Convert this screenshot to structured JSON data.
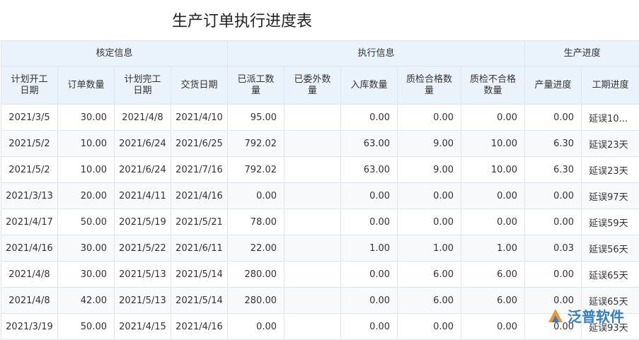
{
  "title": "生产订单执行进度表",
  "table": {
    "groups": [
      "核定信息",
      "执行信息",
      "生产进度"
    ],
    "columns": [
      "计划开工日期",
      "订单数量",
      "计划完工日期",
      "交货日期",
      "已派工数量",
      "已委外数量",
      "入库数量",
      "质检合格数量",
      "质检不合格数量",
      "产量进度",
      "工期进度"
    ],
    "rows": [
      [
        "2021/3/5",
        "30.00",
        "2021/4/8",
        "2021/4/10",
        "95.00",
        null,
        "0.00",
        "0.00",
        "0.00",
        "0.00",
        "延误10..."
      ],
      [
        "2021/5/2",
        "10.00",
        "2021/6/24",
        "2021/6/25",
        "792.02",
        null,
        "63.00",
        "9.00",
        "10.00",
        "6.30",
        "延误23天"
      ],
      [
        "2021/5/2",
        "10.00",
        "2021/6/24",
        "2021/7/16",
        "792.02",
        null,
        "63.00",
        "9.00",
        "10.00",
        "6.30",
        "延误23天"
      ],
      [
        "2021/3/13",
        "20.00",
        "2021/4/11",
        "2021/4/16",
        "0.00",
        null,
        "0.00",
        "0.00",
        "0.00",
        "0.00",
        "延误97天"
      ],
      [
        "2021/4/17",
        "50.00",
        "2021/5/19",
        "2021/5/21",
        "78.00",
        null,
        "0.00",
        "0.00",
        "0.00",
        "0.00",
        "延误59天"
      ],
      [
        "2021/4/16",
        "30.00",
        "2021/5/22",
        "2021/6/11",
        "22.00",
        null,
        "1.00",
        "1.00",
        "1.00",
        "0.03",
        "延误56天"
      ],
      [
        "2021/4/8",
        "30.00",
        "2021/5/13",
        "2021/5/14",
        "280.00",
        null,
        "0.00",
        "6.00",
        "6.00",
        "0.00",
        "延误65天"
      ],
      [
        "2021/4/8",
        "42.00",
        "2021/5/13",
        "2021/5/14",
        "280.00",
        null,
        "0.00",
        "6.00",
        "6.00",
        "0.00",
        "延误65天"
      ],
      [
        "2021/3/19",
        "50.00",
        "2021/4/15",
        "2021/4/16",
        "0.00",
        null,
        "0.00",
        "0.00",
        "0.00",
        "0.00",
        "延误93天"
      ]
    ]
  },
  "logo": "泛普软件"
}
